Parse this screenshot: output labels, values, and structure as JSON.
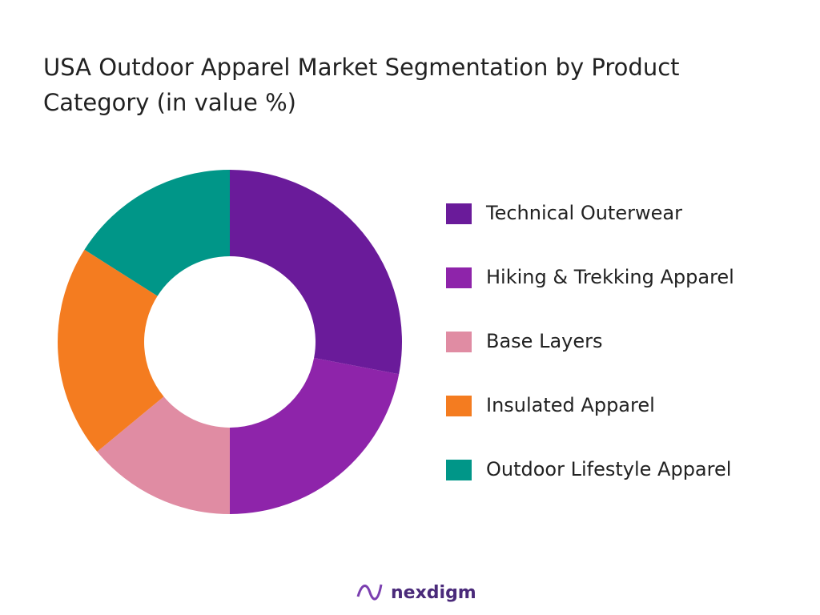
{
  "chart_data": {
    "type": "donut",
    "title": "USA Outdoor Apparel Market Segmentation by Product Category (in value %)",
    "categories": [
      "Technical Outerwear",
      "Hiking & Trekking Apparel",
      "Base Layers",
      "Insulated Apparel",
      "Outdoor Lifestyle Apparel"
    ],
    "values": [
      28,
      22,
      14,
      20,
      16
    ],
    "colors": [
      "#6a1b9a",
      "#8e24aa",
      "#e08ca3",
      "#f47c20",
      "#009688"
    ],
    "legend": "right"
  },
  "brand": "nexdigm"
}
